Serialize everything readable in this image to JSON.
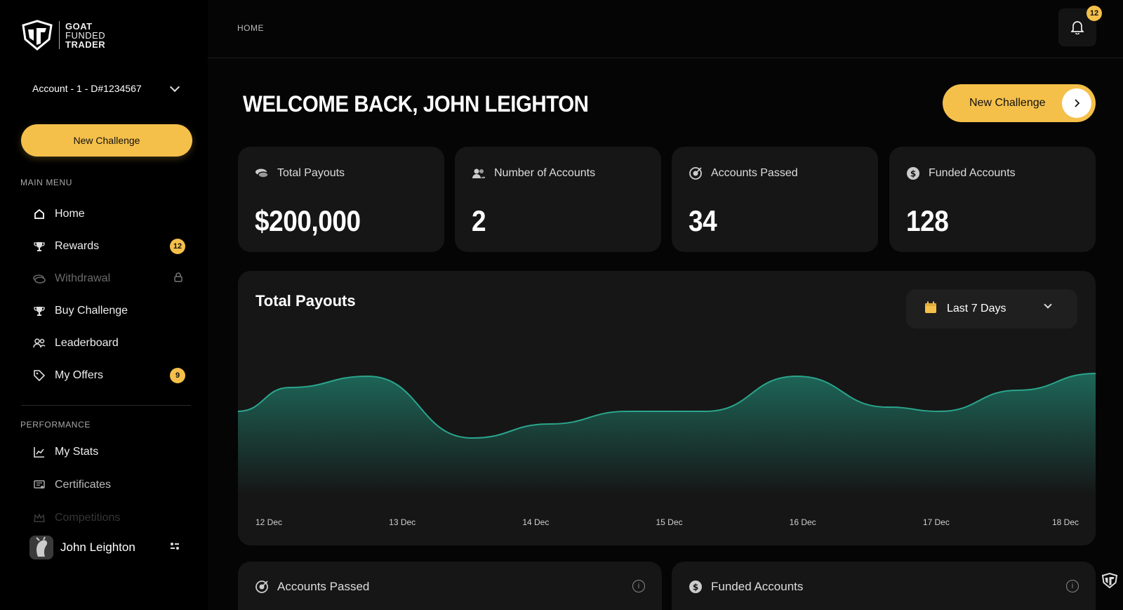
{
  "brand": {
    "logo_icon": "goat-shield-logo",
    "line1": "GOAT",
    "line2": "FUNDED",
    "line3": "TRADER"
  },
  "sidebar": {
    "account_label": "Account - 1 - D#1234567",
    "new_challenge_label": "New Challenge",
    "main_menu_label": "MAIN MENU",
    "main_items": [
      {
        "label": "Home",
        "icon": "home-icon"
      },
      {
        "label": "Rewards",
        "icon": "trophy-icon",
        "badge": "12"
      },
      {
        "label": "Withdrawal",
        "icon": "money-icon",
        "locked": true
      },
      {
        "label": "Buy Challenge",
        "icon": "trophy-icon"
      },
      {
        "label": "Leaderboard",
        "icon": "users-icon"
      },
      {
        "label": "My Offers",
        "icon": "tag-icon",
        "badge": "9"
      }
    ],
    "performance_label": "PERFORMANCE",
    "performance_items": [
      {
        "label": "My Stats",
        "icon": "chart-icon"
      },
      {
        "label": "Certificates",
        "icon": "certificate-icon"
      },
      {
        "label": "Competitions",
        "icon": "crown-icon"
      }
    ],
    "user_name": "John Leighton"
  },
  "header": {
    "breadcrumb": "HOME",
    "notification_count": "12"
  },
  "main": {
    "welcome": "WELCOME BACK, JOHN LEIGHTON",
    "new_challenge_label": "New Challenge",
    "stats": [
      {
        "label": "Total Payouts",
        "value": "$200,000",
        "icon": "coins-icon"
      },
      {
        "label": "Number of Accounts",
        "value": "2",
        "icon": "users-icon"
      },
      {
        "label": "Accounts Passed",
        "value": "34",
        "icon": "target-icon"
      },
      {
        "label": "Funded Accounts",
        "value": "128",
        "icon": "dollar-coin-icon"
      }
    ],
    "bottom_cards": [
      {
        "label": "Accounts Passed",
        "icon": "target-icon"
      },
      {
        "label": "Funded Accounts",
        "icon": "dollar-coin-icon"
      }
    ]
  },
  "chart_data": {
    "type": "area",
    "title": "Total Payouts",
    "range_label": "Last 7 Days",
    "categories": [
      "12 Dec",
      "13 Dec",
      "14 Dec",
      "15 Dec",
      "16 Dec",
      "17 Dec",
      "18 Dec"
    ],
    "x": [
      0,
      0.4,
      1,
      1.8,
      2.4,
      3,
      3.6,
      4.3,
      5,
      5.4,
      6,
      6.6
    ],
    "values": [
      55,
      72,
      80,
      36,
      46,
      55,
      55,
      80,
      58,
      55,
      70,
      82
    ],
    "ylim": [
      0,
      100
    ],
    "color": "#1e6b5c",
    "line_color": "#2aa58c"
  }
}
